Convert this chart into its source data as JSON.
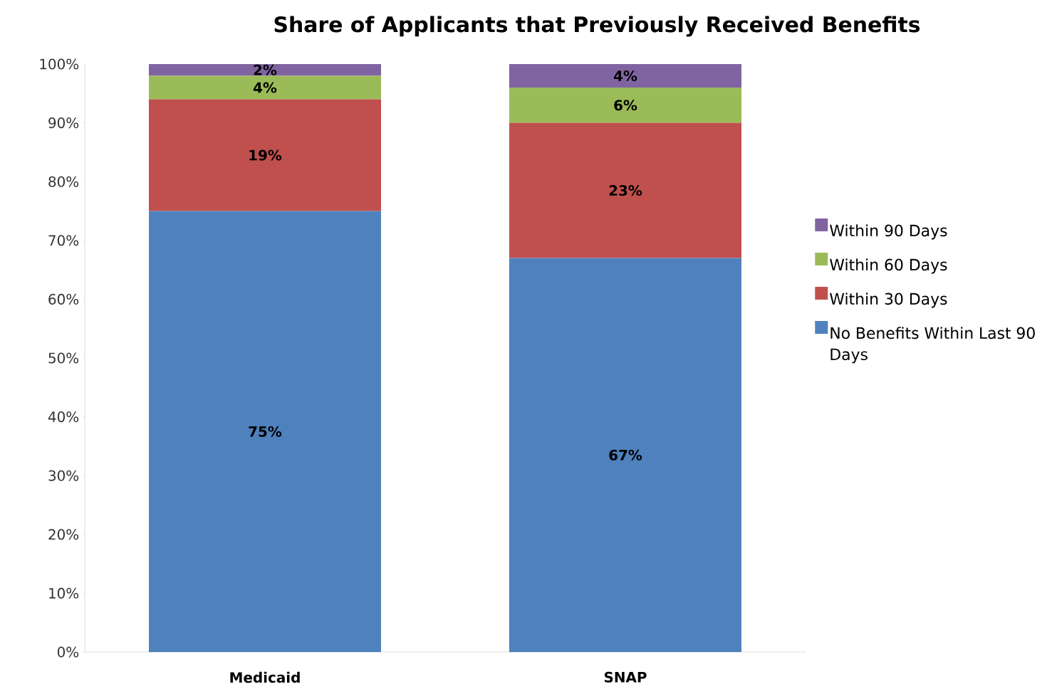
{
  "chart_data": {
    "type": "bar",
    "title": "Share of Applicants that Previously Received Benefits",
    "categories": [
      "Medicaid",
      "SNAP"
    ],
    "stacked": true,
    "legend": "right",
    "ylim": [
      0,
      100
    ],
    "yticks": [
      {
        "value": 0,
        "label": "0%"
      },
      {
        "value": 10,
        "label": "10%"
      },
      {
        "value": 20,
        "label": "20%"
      },
      {
        "value": 30,
        "label": "30%"
      },
      {
        "value": 40,
        "label": "40%"
      },
      {
        "value": 50,
        "label": "50%"
      },
      {
        "value": 60,
        "label": "60%"
      },
      {
        "value": 70,
        "label": "70%"
      },
      {
        "value": 80,
        "label": "80%"
      },
      {
        "value": 90,
        "label": "90%"
      },
      {
        "value": 100,
        "label": "100%"
      }
    ],
    "series": [
      {
        "name": "No Benefits Within Last 90 Days",
        "color": "#4f81bd",
        "values": [
          75,
          67
        ],
        "value_labels": [
          "75%",
          "67%"
        ]
      },
      {
        "name": "Within 30 Days",
        "color": "#c0504d",
        "values": [
          19,
          23
        ],
        "value_labels": [
          "19%",
          "23%"
        ]
      },
      {
        "name": "Within 60 Days",
        "color": "#9bbb59",
        "values": [
          4,
          6
        ],
        "value_labels": [
          "4%",
          "6%"
        ]
      },
      {
        "name": "Within 90 Days",
        "color": "#8064a2",
        "values": [
          2,
          4
        ],
        "value_labels": [
          "2%",
          "4%"
        ]
      }
    ]
  }
}
